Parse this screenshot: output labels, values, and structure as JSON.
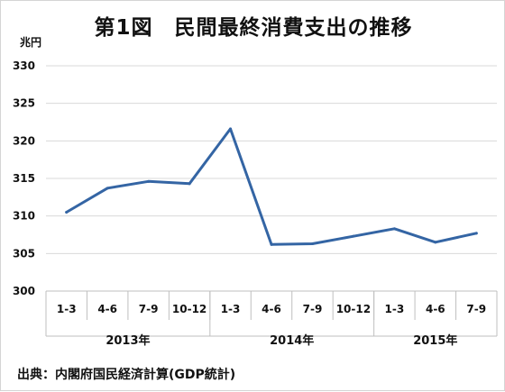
{
  "title": "第1図　民間最終消費支出の推移",
  "unit_label": "兆円",
  "source_note": "出典：内閣府国民経済計算(GDP統計)",
  "colors": {
    "line": "#3465a4",
    "grid": "#d9d9d9",
    "axis": "#bfbfbf"
  },
  "chart_data": {
    "type": "line",
    "title": "第1図　民間最終消費支出の推移",
    "ylabel": "兆円",
    "xlabel": "",
    "ylim": [
      300,
      330
    ],
    "yticks": [
      300,
      305,
      310,
      315,
      320,
      325,
      330
    ],
    "grid": true,
    "categories": [
      "1-3",
      "4-6",
      "7-9",
      "10-12",
      "1-3",
      "4-6",
      "7-9",
      "10-12",
      "1-3",
      "4-6",
      "7-9"
    ],
    "year_groups": [
      {
        "label": "2013年",
        "span": 4
      },
      {
        "label": "2014年",
        "span": 4
      },
      {
        "label": "2015年",
        "span": 3
      }
    ],
    "series": [
      {
        "values": [
          310.5,
          313.7,
          314.6,
          314.3,
          321.6,
          306.2,
          306.3,
          307.3,
          308.3,
          306.5,
          307.7
        ]
      }
    ]
  }
}
